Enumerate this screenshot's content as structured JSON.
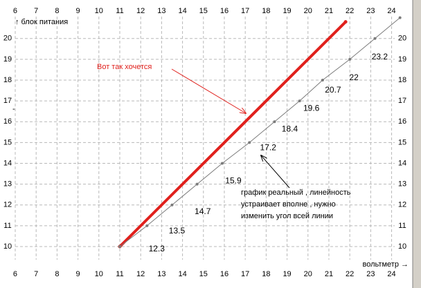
{
  "chart_data": {
    "type": "line",
    "x_label": "вольтметр →",
    "y_label": "↑ блок питания",
    "xlim": [
      5.5,
      24.7
    ],
    "ylim": [
      9.5,
      21.2
    ],
    "xticks": [
      6,
      7,
      8,
      9,
      10,
      11,
      12,
      13,
      14,
      15,
      16,
      17,
      18,
      19,
      20,
      21,
      22,
      23,
      24
    ],
    "yticks": [
      10,
      11,
      12,
      13,
      14,
      15,
      16,
      17,
      18,
      19,
      20
    ],
    "grid": true,
    "series": [
      {
        "color": "#e0201c",
        "x": [
          11,
          21.8
        ],
        "values": [
          10,
          20.8
        ]
      },
      {
        "color": "#7a7a7a",
        "x": [
          11,
          12.3,
          13.5,
          14.7,
          15.9,
          17.2,
          18.4,
          19.6,
          20.7,
          22,
          23.2,
          24.4
        ],
        "values": [
          10,
          11,
          12,
          13,
          14,
          15,
          16,
          17,
          18,
          19,
          20,
          21
        ]
      }
    ],
    "annotations": [
      {
        "text": "Вот так хочется"
      },
      {
        "lines": [
          "график реальный , линейность",
          "устраивает вполне , нужно",
          "изменить угол всей линии"
        ]
      }
    ]
  }
}
